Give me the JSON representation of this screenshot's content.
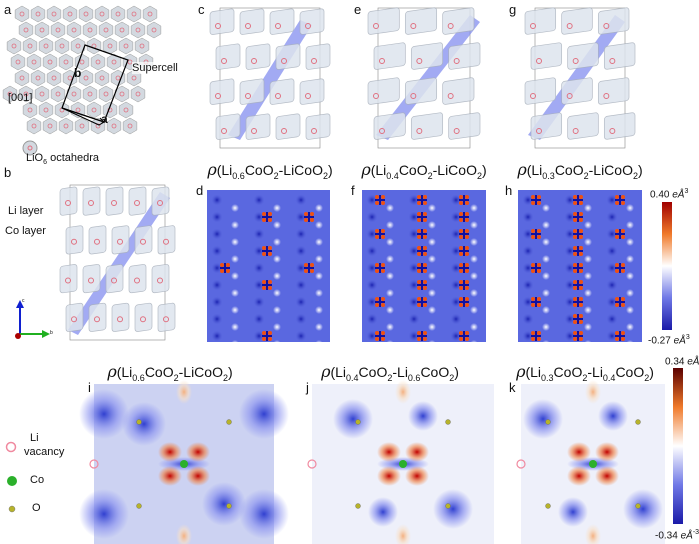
{
  "panels": {
    "a": {
      "label": "a",
      "direction": "[001]",
      "vec_a": "a",
      "vec_b": "b",
      "supercell": "Supercell",
      "octa_pre": "LiO",
      "octa_sub": "6",
      "octa_post": " octahedra"
    },
    "b": {
      "label": "b",
      "li_layer": "Li layer",
      "co_layer": "Co layer",
      "axis_c": "c",
      "axis_b": "b"
    },
    "c": {
      "label": "c"
    },
    "e": {
      "label": "e"
    },
    "g": {
      "label": "g"
    },
    "d": {
      "label": "d",
      "title": [
        {
          "t": "ρ",
          "cls": "rho"
        },
        {
          "t": "(Li"
        },
        {
          "t": "0.6",
          "sub": true
        },
        {
          "t": "CoO"
        },
        {
          "t": "2",
          "sub": true
        },
        {
          "t": "-LiCoO"
        },
        {
          "t": "2",
          "sub": true
        },
        {
          "t": ")"
        }
      ]
    },
    "f": {
      "label": "f",
      "title": [
        {
          "t": "ρ",
          "cls": "rho"
        },
        {
          "t": "(Li"
        },
        {
          "t": "0.4",
          "sub": true
        },
        {
          "t": "CoO"
        },
        {
          "t": "2",
          "sub": true
        },
        {
          "t": "-LiCoO"
        },
        {
          "t": "2",
          "sub": true
        },
        {
          "t": ")"
        }
      ]
    },
    "h": {
      "label": "h",
      "title": [
        {
          "t": "ρ",
          "cls": "rho"
        },
        {
          "t": "(Li"
        },
        {
          "t": "0.3",
          "sub": true
        },
        {
          "t": "CoO"
        },
        {
          "t": "2",
          "sub": true
        },
        {
          "t": "-LiCoO"
        },
        {
          "t": "2",
          "sub": true
        },
        {
          "t": ")"
        }
      ]
    },
    "i": {
      "label": "i",
      "title": [
        {
          "t": "ρ",
          "cls": "rho"
        },
        {
          "t": "(Li"
        },
        {
          "t": "0.6",
          "sub": true
        },
        {
          "t": "CoO"
        },
        {
          "t": "2",
          "sub": true
        },
        {
          "t": "-LiCoO"
        },
        {
          "t": "2",
          "sub": true
        },
        {
          "t": ")"
        }
      ]
    },
    "j": {
      "label": "j",
      "title": [
        {
          "t": "ρ",
          "cls": "rho"
        },
        {
          "t": "(Li"
        },
        {
          "t": "0.4",
          "sub": true
        },
        {
          "t": "CoO"
        },
        {
          "t": "2",
          "sub": true
        },
        {
          "t": "-Li"
        },
        {
          "t": "0.6",
          "sub": true
        },
        {
          "t": "CoO"
        },
        {
          "t": "2",
          "sub": true
        },
        {
          "t": ")"
        }
      ]
    },
    "k": {
      "label": "k",
      "title": [
        {
          "t": "ρ",
          "cls": "rho"
        },
        {
          "t": "(Li"
        },
        {
          "t": "0.3",
          "sub": true
        },
        {
          "t": "CoO"
        },
        {
          "t": "2",
          "sub": true
        },
        {
          "t": "-Li"
        },
        {
          "t": "0.4",
          "sub": true
        },
        {
          "t": "CoO"
        },
        {
          "t": "2",
          "sub": true
        },
        {
          "t": ")"
        }
      ]
    }
  },
  "colorbar_top": {
    "max_val": "0.40 ",
    "max_unit": "eÅ",
    "max_exp": "3",
    "min_val": "-0.27 ",
    "min_unit": "eÅ",
    "min_exp": "3",
    "colors": [
      "#1a1aa8",
      "#6f78e6",
      "#ffffff",
      "#f07a2a",
      "#a00000"
    ]
  },
  "colorbar_bottom": {
    "max_val": "0.34 ",
    "max_unit": "eÅ",
    "max_exp": "-3",
    "min_val": "-0.34 ",
    "min_unit": "eÅ",
    "min_exp": "-3",
    "colors": [
      "#1a1aa8",
      "#6f78e6",
      "#ffffff",
      "#f07a2a",
      "#5a0000"
    ]
  },
  "legend": {
    "items": [
      {
        "l1": "Li",
        "l2": "vacancy",
        "color": "#f08aa0",
        "shape": "open-circle"
      },
      {
        "l1": "Co",
        "color": "#2bb02b",
        "shape": "filled-circle"
      },
      {
        "l1": "O",
        "color": "#b7b32a",
        "shape": "filled-circle"
      }
    ]
  }
}
